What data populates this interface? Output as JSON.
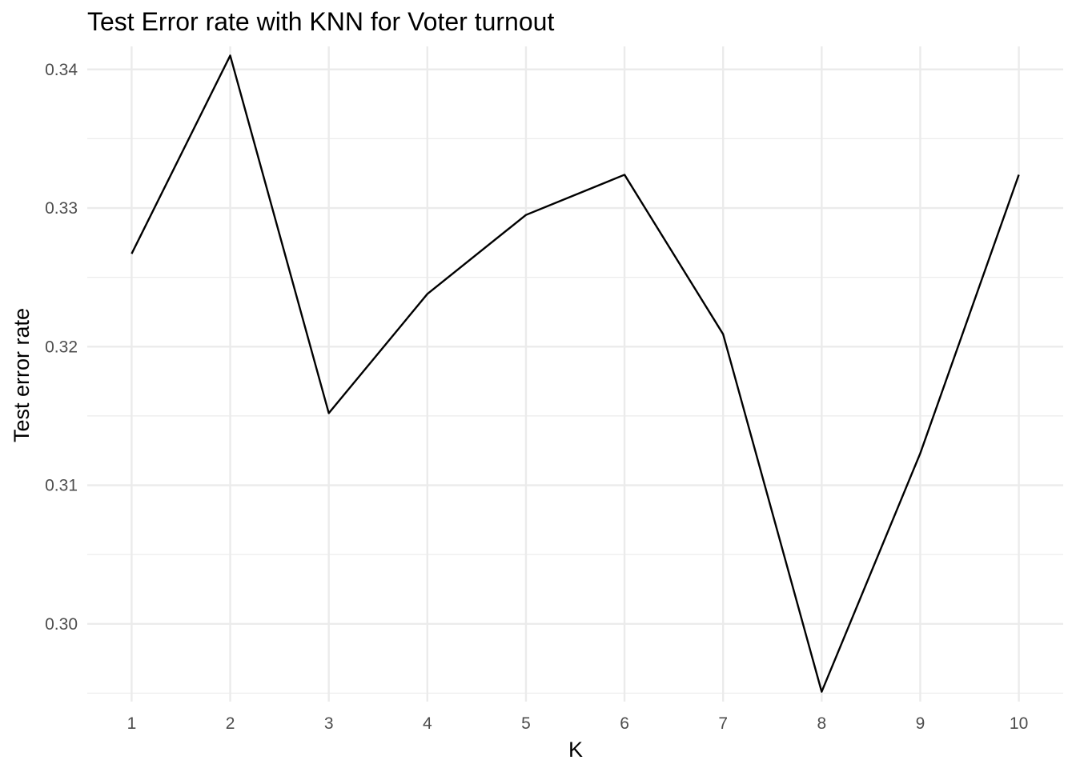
{
  "chart_data": {
    "type": "line",
    "title": "Test Error rate with KNN for Voter turnout",
    "xlabel": "K",
    "ylabel": "Test error rate",
    "x": [
      1,
      2,
      3,
      4,
      5,
      6,
      7,
      8,
      9,
      10
    ],
    "series": [
      {
        "values": [
          0.3267,
          0.341,
          0.3152,
          0.3238,
          0.3295,
          0.3324,
          0.3209,
          0.2951,
          0.3123,
          0.3324
        ]
      }
    ],
    "xticks": [
      "1",
      "2",
      "3",
      "4",
      "5",
      "6",
      "7",
      "8",
      "9",
      "10"
    ],
    "yticks": [
      "0.30",
      "0.31",
      "0.32",
      "0.33",
      "0.34"
    ],
    "ytick_values": [
      0.3,
      0.31,
      0.32,
      0.33,
      0.34
    ],
    "xlim": [
      0.55,
      10.45
    ],
    "ylim": [
      0.29439,
      0.34166
    ],
    "grid": true,
    "legend": "none",
    "line_color": "#000000",
    "grid_color": "#ebebeb"
  }
}
